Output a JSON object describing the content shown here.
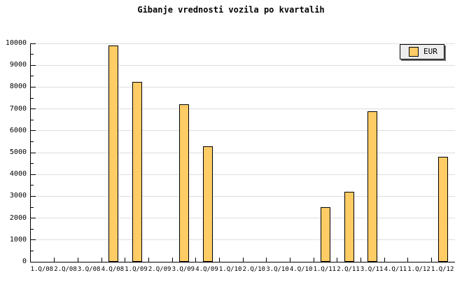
{
  "colors": {
    "background": "#FFFFFF",
    "bar_fill": "#FFCC66",
    "bar_border": "#000000",
    "grid": "#DEDEDE",
    "axis": "#000000",
    "legend_bg": "#EDEDED",
    "legend_shadow": "#6E6E6E"
  },
  "chart_data": {
    "type": "bar",
    "title": "Gibanje vrednosti vozila po kvartalih",
    "categories": [
      "1.Q/08",
      "2.Q/08",
      "3.Q/08",
      "4.Q/08",
      "1.Q/09",
      "2.Q/09",
      "3.Q/09",
      "4.Q/09",
      "1.Q/10",
      "2.Q/10",
      "3.Q/10",
      "4.Q/10",
      "1.Q/11",
      "2.Q/11",
      "3.Q/11",
      "4.Q/11",
      "1.Q/12",
      "1.Q/12"
    ],
    "values": [
      null,
      null,
      null,
      9900,
      8250,
      null,
      7200,
      5300,
      null,
      null,
      null,
      null,
      2500,
      3200,
      6900,
      null,
      null,
      4800
    ],
    "xlabel": "",
    "ylabel": "",
    "ylim": [
      0,
      10000
    ],
    "ytick_step": 1000,
    "yminor_step": 500,
    "ytick_labels": [
      "0",
      "1000",
      "2000",
      "3000",
      "4000",
      "5000",
      "6000",
      "7000",
      "8000",
      "9000",
      "10000"
    ],
    "grid": "horizontal-major",
    "tick_direction": "inside",
    "legend": {
      "entries": [
        "EUR"
      ],
      "position": "top-right"
    }
  }
}
